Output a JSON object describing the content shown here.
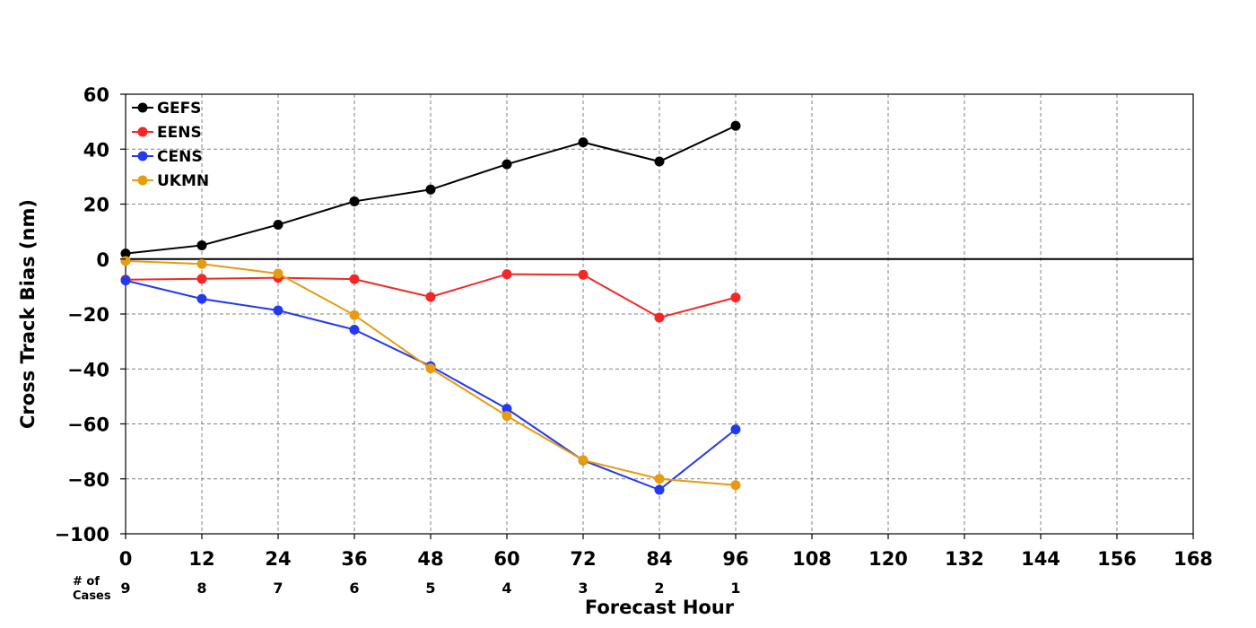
{
  "chart_data": {
    "type": "line",
    "xlabel": "Forecast Hour",
    "ylabel": "Cross Track Bias (nm)",
    "xlim": [
      0,
      168
    ],
    "ylim": [
      -100,
      60
    ],
    "x_ticks": [
      0,
      12,
      24,
      36,
      48,
      60,
      72,
      84,
      96,
      108,
      120,
      132,
      144,
      156,
      168
    ],
    "y_ticks": [
      60,
      40,
      20,
      0,
      -20,
      -40,
      -60,
      -80,
      -100
    ],
    "y_tick_labels": [
      "60",
      "40",
      "20",
      "0",
      "−20",
      "−40",
      "−60",
      "−80",
      "−100"
    ],
    "grid": true,
    "zero_line": true,
    "legend_position": "top-left",
    "x": [
      0,
      12,
      24,
      36,
      48,
      60,
      72,
      84,
      96
    ],
    "series": [
      {
        "name": "GEFS",
        "color": "#000000",
        "values": [
          2,
          5,
          12.5,
          21,
          25.3,
          34.5,
          42.5,
          35.5,
          48.5
        ]
      },
      {
        "name": "EENS",
        "color": "#f42626",
        "values": [
          -7.5,
          -7.2,
          -6.8,
          -7.3,
          -13.8,
          -5.5,
          -5.7,
          -21.3,
          -14
        ]
      },
      {
        "name": "CENS",
        "color": "#2239f0",
        "values": [
          -7.8,
          -14.5,
          -18.7,
          -25.7,
          -39,
          -54.5,
          -73.3,
          -84,
          -62
        ]
      },
      {
        "name": "UKMN",
        "color": "#e69c0e",
        "values": [
          -0.7,
          -1.8,
          -5.3,
          -20.4,
          -39.8,
          -57.1,
          -73.2,
          -80,
          -82.3
        ]
      }
    ],
    "cases": {
      "title_line1": "# of",
      "title_line2": "Cases",
      "x": [
        0,
        12,
        24,
        36,
        48,
        60,
        72,
        84,
        96
      ],
      "values": [
        "9",
        "8",
        "7",
        "6",
        "5",
        "4",
        "3",
        "2",
        "1"
      ]
    }
  }
}
